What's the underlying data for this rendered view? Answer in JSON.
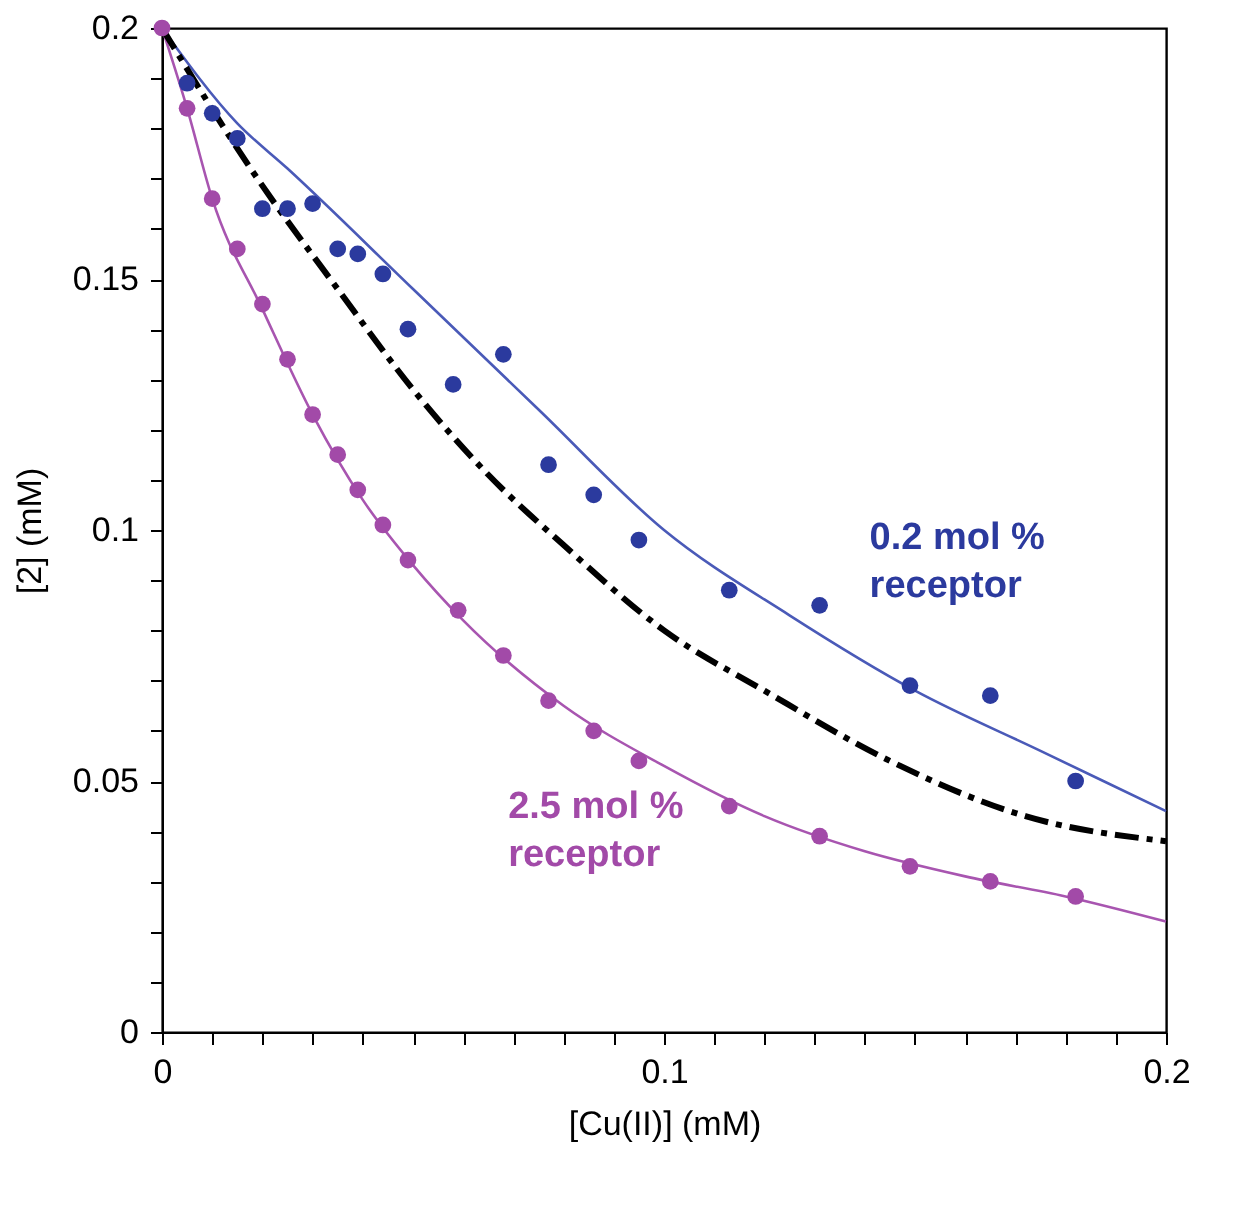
{
  "chart_data": {
    "type": "scatter",
    "xlabel": "[Cu(II)] (mM)",
    "ylabel": "[2] (mM)",
    "xlim": [
      0,
      0.2
    ],
    "ylim": [
      0,
      0.2
    ],
    "xticks": [
      0,
      {
        "value": 0.01,
        "label": null
      },
      {
        "value": 0.02,
        "label": null
      },
      {
        "value": 0.03,
        "label": null
      },
      {
        "value": 0.04,
        "label": null
      },
      {
        "value": 0.05,
        "label": null
      },
      {
        "value": 0.06,
        "label": null
      },
      {
        "value": 0.07,
        "label": null
      },
      {
        "value": 0.08,
        "label": null
      },
      {
        "value": 0.09,
        "label": null
      },
      0.1,
      {
        "value": 0.11,
        "label": null
      },
      {
        "value": 0.12,
        "label": null
      },
      {
        "value": 0.13,
        "label": null
      },
      {
        "value": 0.14,
        "label": null
      },
      {
        "value": 0.15,
        "label": null
      },
      {
        "value": 0.16,
        "label": null
      },
      {
        "value": 0.17,
        "label": null
      },
      {
        "value": 0.18,
        "label": null
      },
      {
        "value": 0.19,
        "label": null
      },
      0.2
    ],
    "yticks": [
      0,
      {
        "value": 0.01,
        "label": null
      },
      {
        "value": 0.02,
        "label": null
      },
      {
        "value": 0.03,
        "label": null
      },
      {
        "value": 0.04,
        "label": null
      },
      0.05,
      {
        "value": 0.06,
        "label": null
      },
      {
        "value": 0.07,
        "label": null
      },
      {
        "value": 0.08,
        "label": null
      },
      {
        "value": 0.09,
        "label": null
      },
      0.1,
      {
        "value": 0.11,
        "label": null
      },
      {
        "value": 0.12,
        "label": null
      },
      {
        "value": 0.13,
        "label": null
      },
      {
        "value": 0.14,
        "label": null
      },
      0.15,
      {
        "value": 0.16,
        "label": null
      },
      {
        "value": 0.17,
        "label": null
      },
      {
        "value": 0.18,
        "label": null
      },
      {
        "value": 0.19,
        "label": null
      },
      0.2
    ],
    "grid": false,
    "marker": "circle",
    "series": [
      {
        "type": "line",
        "marker": "none",
        "color": "#4a5ab8",
        "x": [
          0,
          0.015,
          0.025,
          0.05,
          0.075,
          0.1,
          0.125,
          0.15,
          0.175,
          0.2
        ],
        "values": [
          0.2,
          0.181,
          0.172,
          0.148,
          0.124,
          0.1,
          0.083,
          0.068,
          0.056,
          0.044
        ]
      },
      {
        "type": "line",
        "marker": "none",
        "color": "#a855b0",
        "x": [
          0,
          0.005,
          0.01,
          0.02,
          0.03,
          0.04,
          0.05,
          0.06,
          0.08,
          0.1,
          0.12,
          0.14,
          0.16,
          0.18,
          0.2
        ],
        "values": [
          0.2,
          0.184,
          0.166,
          0.144,
          0.123,
          0.106,
          0.093,
          0.082,
          0.065,
          0.053,
          0.043,
          0.036,
          0.031,
          0.027,
          0.022
        ]
      },
      {
        "type": "line",
        "marker": "none",
        "color": "#000000",
        "line_style": "dashed",
        "x": [
          0,
          0.018,
          0.035,
          0.05,
          0.065,
          0.08,
          0.1,
          0.12,
          0.145,
          0.172,
          0.2
        ],
        "values": [
          0.2,
          0.1715,
          0.148,
          0.128,
          0.111,
          0.097,
          0.08,
          0.068,
          0.054,
          0.043,
          0.038
        ]
      },
      {
        "name": "0.2 mol % receptor",
        "color": "#2b3a9e",
        "x": [
          0.005,
          0.01,
          0.015,
          0.02,
          0.025,
          0.03,
          0.035,
          0.039,
          0.044,
          0.049,
          0.058,
          0.068,
          0.077,
          0.086,
          0.095,
          0.113,
          0.131,
          0.149,
          0.165,
          0.182
        ],
        "values": [
          0.189,
          0.183,
          0.178,
          0.164,
          0.164,
          0.165,
          0.156,
          0.155,
          0.151,
          0.14,
          0.129,
          0.135,
          0.113,
          0.107,
          0.098,
          0.088,
          0.085,
          0.069,
          0.067,
          0.05
        ]
      },
      {
        "name": "2.5 mol % receptor",
        "color": "#a24aa8",
        "x": [
          0,
          0.005,
          0.01,
          0.015,
          0.02,
          0.025,
          0.03,
          0.035,
          0.039,
          0.044,
          0.049,
          0.059,
          0.068,
          0.077,
          0.086,
          0.095,
          0.113,
          0.131,
          0.149,
          0.165,
          0.182
        ],
        "values": [
          0.2,
          0.184,
          0.166,
          0.156,
          0.145,
          0.134,
          0.123,
          0.115,
          0.108,
          0.101,
          0.094,
          0.084,
          0.075,
          0.066,
          0.06,
          0.054,
          0.045,
          0.039,
          0.033,
          0.03,
          0.027
        ]
      }
    ]
  }
}
